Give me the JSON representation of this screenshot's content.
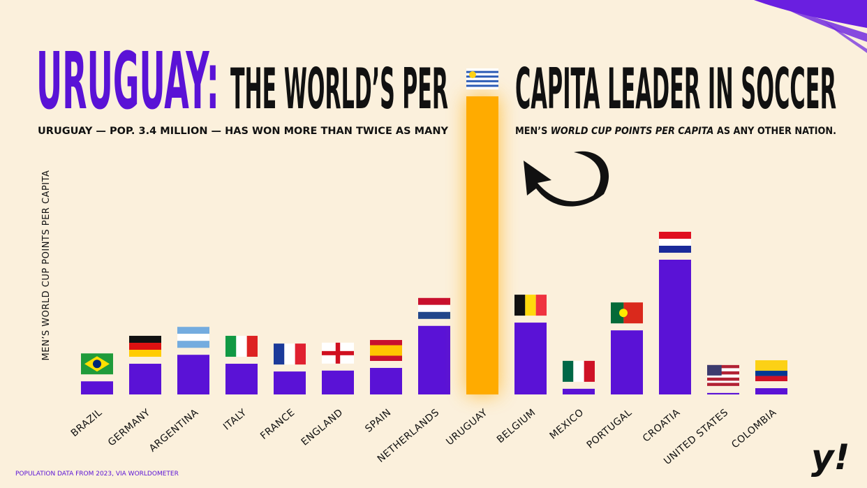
{
  "title_highlight": "URUGUAY:",
  "title_part1": "THE WORLD’S PER",
  "title_part2": "CAPITA LEADER IN SOCCER",
  "subtitle_part1": "URUGUAY — POP. 3.4 MILLION — HAS WON MORE THAN TWICE AS MANY",
  "subtitle_part2": "MEN’S",
  "subtitle_part3": "WORLD CUP POINTS PER CAPITA",
  "subtitle_part4": "AS ANY OTHER NATION.",
  "footnote": "POPULATION DATA FROM 2023, VIA WORLDOMETER",
  "logo": "y!",
  "chart_data": {
    "type": "bar",
    "y_label": "MEN’S WORLD CUP POINTS PER CAPITA",
    "categories": [
      "BRAZIL",
      "GERMANY",
      "ARGENTINA",
      "ITALY",
      "FRANCE",
      "ENGLAND",
      "SPAIN",
      "NETHERLANDS",
      "URUGUAY",
      "BELGIUM",
      "MEXICO",
      "PORTUGAL",
      "CROATIA",
      "UNITED STATES",
      "COLOMBIA"
    ],
    "values": [
      4.4,
      10.3,
      13.3,
      10.3,
      7.7,
      8.0,
      8.9,
      23,
      100,
      24.1,
      1.9,
      21.5,
      45.2,
      0.5,
      2.1
    ],
    "colors": [
      "#5a12d6",
      "#5a12d6",
      "#5a12d6",
      "#5a12d6",
      "#5a12d6",
      "#5a12d6",
      "#5a12d6",
      "#5a12d6",
      "#ffab00",
      "#5a12d6",
      "#5a12d6",
      "#5a12d6",
      "#5a12d6",
      "#5a12d6",
      "#5a12d6"
    ],
    "ylim": [
      0,
      100
    ],
    "grid": false
  }
}
